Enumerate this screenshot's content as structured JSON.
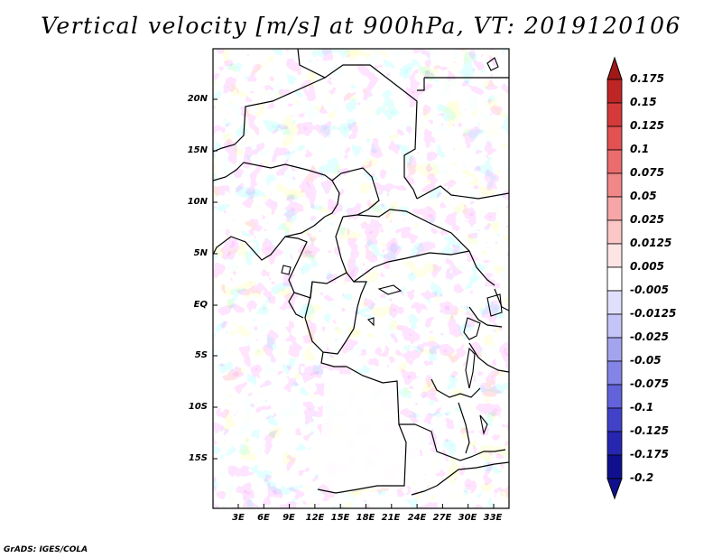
{
  "title": "Vertical velocity [m/s] at 900hPa, VT: 2019120106",
  "footer": "GrADS: IGES/COLA",
  "lat_labels": [
    "20N",
    "15N",
    "10N",
    "5N",
    "EQ",
    "5S",
    "10S",
    "15S"
  ],
  "lon_labels": [
    "3E",
    "6E",
    "9E",
    "12E",
    "15E",
    "18E",
    "21E",
    "24E",
    "27E",
    "30E",
    "33E"
  ],
  "legend": {
    "labels": [
      "0.175",
      "0.15",
      "0.125",
      "0.1",
      "0.075",
      "0.05",
      "0.025",
      "0.0125",
      "0.005",
      "-0.005",
      "-0.0125",
      "-0.025",
      "-0.05",
      "-0.075",
      "-0.1",
      "-0.125",
      "-0.175",
      "-0.2"
    ],
    "colors": [
      "#a01818",
      "#be2626",
      "#d43a3a",
      "#e25252",
      "#ea6c6c",
      "#f08888",
      "#f6a6a6",
      "#fac6c6",
      "#fde4e4",
      "#ffffff",
      "#e0e0fc",
      "#c4c4f6",
      "#a4a4ee",
      "#8484e6",
      "#6262da",
      "#4242c8",
      "#2626b0",
      "#10108e"
    ],
    "top_arrow_color": "#a01818",
    "bottom_arrow_color": "#10108e"
  },
  "palette": {
    "positive": "#f2a0a0",
    "negative": "#a8a8ee"
  }
}
